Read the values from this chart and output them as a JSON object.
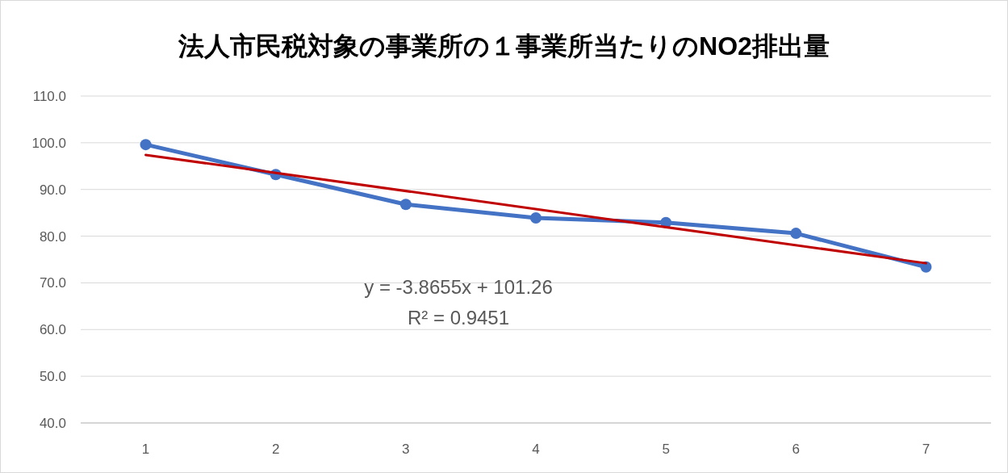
{
  "chart_data": {
    "type": "line",
    "title": "法人市民税対象の事業所の１事業所当たりのNO2排出量",
    "categories": [
      "1",
      "2",
      "3",
      "4",
      "5",
      "6",
      "7"
    ],
    "series": [
      {
        "color": "#4472c4",
        "marker": "circle",
        "values": [
          99.6,
          93.2,
          86.8,
          83.9,
          82.9,
          80.6,
          73.4
        ]
      },
      {
        "type": "line",
        "color": "#c00000",
        "marker": "none",
        "x": [
          "1",
          "7"
        ],
        "values": [
          97.4,
          74.2
        ]
      }
    ],
    "ylim": [
      40,
      110
    ],
    "yticks": [
      {
        "value": 40,
        "label": "40.0"
      },
      {
        "value": 50,
        "label": "50.0"
      },
      {
        "value": 60,
        "label": "60.0"
      },
      {
        "value": 70,
        "label": "70.0"
      },
      {
        "value": 80,
        "label": "80.0"
      },
      {
        "value": 90,
        "label": "90.0"
      },
      {
        "value": 100,
        "label": "100.0"
      },
      {
        "value": 110,
        "label": "110.0"
      }
    ],
    "grid": "y",
    "annotations": [
      "y = -3.8655x + 101.26",
      "R² = 0.9451"
    ]
  }
}
